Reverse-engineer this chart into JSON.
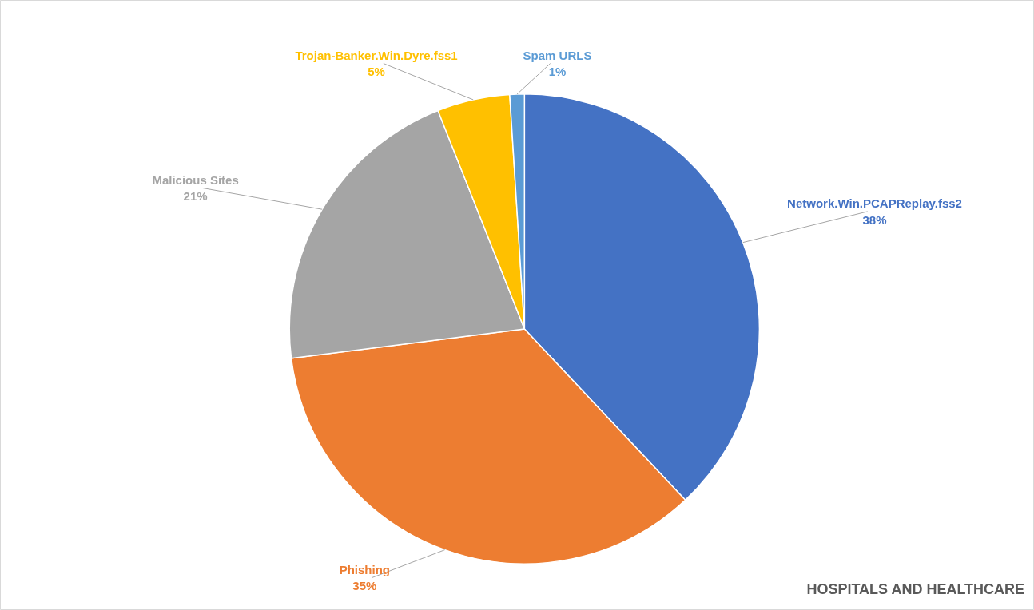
{
  "chart_data": {
    "type": "pie",
    "title": "HOSPITALS AND HEALTHCARE",
    "categories": [
      "Network.Win.PCAPReplay.fss2",
      "Phishing",
      "Malicious Sites",
      "Trojan-Banker.Win.Dyre.fss1",
      "Spam URLS"
    ],
    "values": [
      38,
      35,
      21,
      5,
      1
    ],
    "value_labels": [
      "38%",
      "35%",
      "21%",
      "5%",
      "1%"
    ],
    "colors": [
      "#4472c4",
      "#ed7d31",
      "#a5a5a5",
      "#ffc000",
      "#5b9bd5"
    ]
  }
}
